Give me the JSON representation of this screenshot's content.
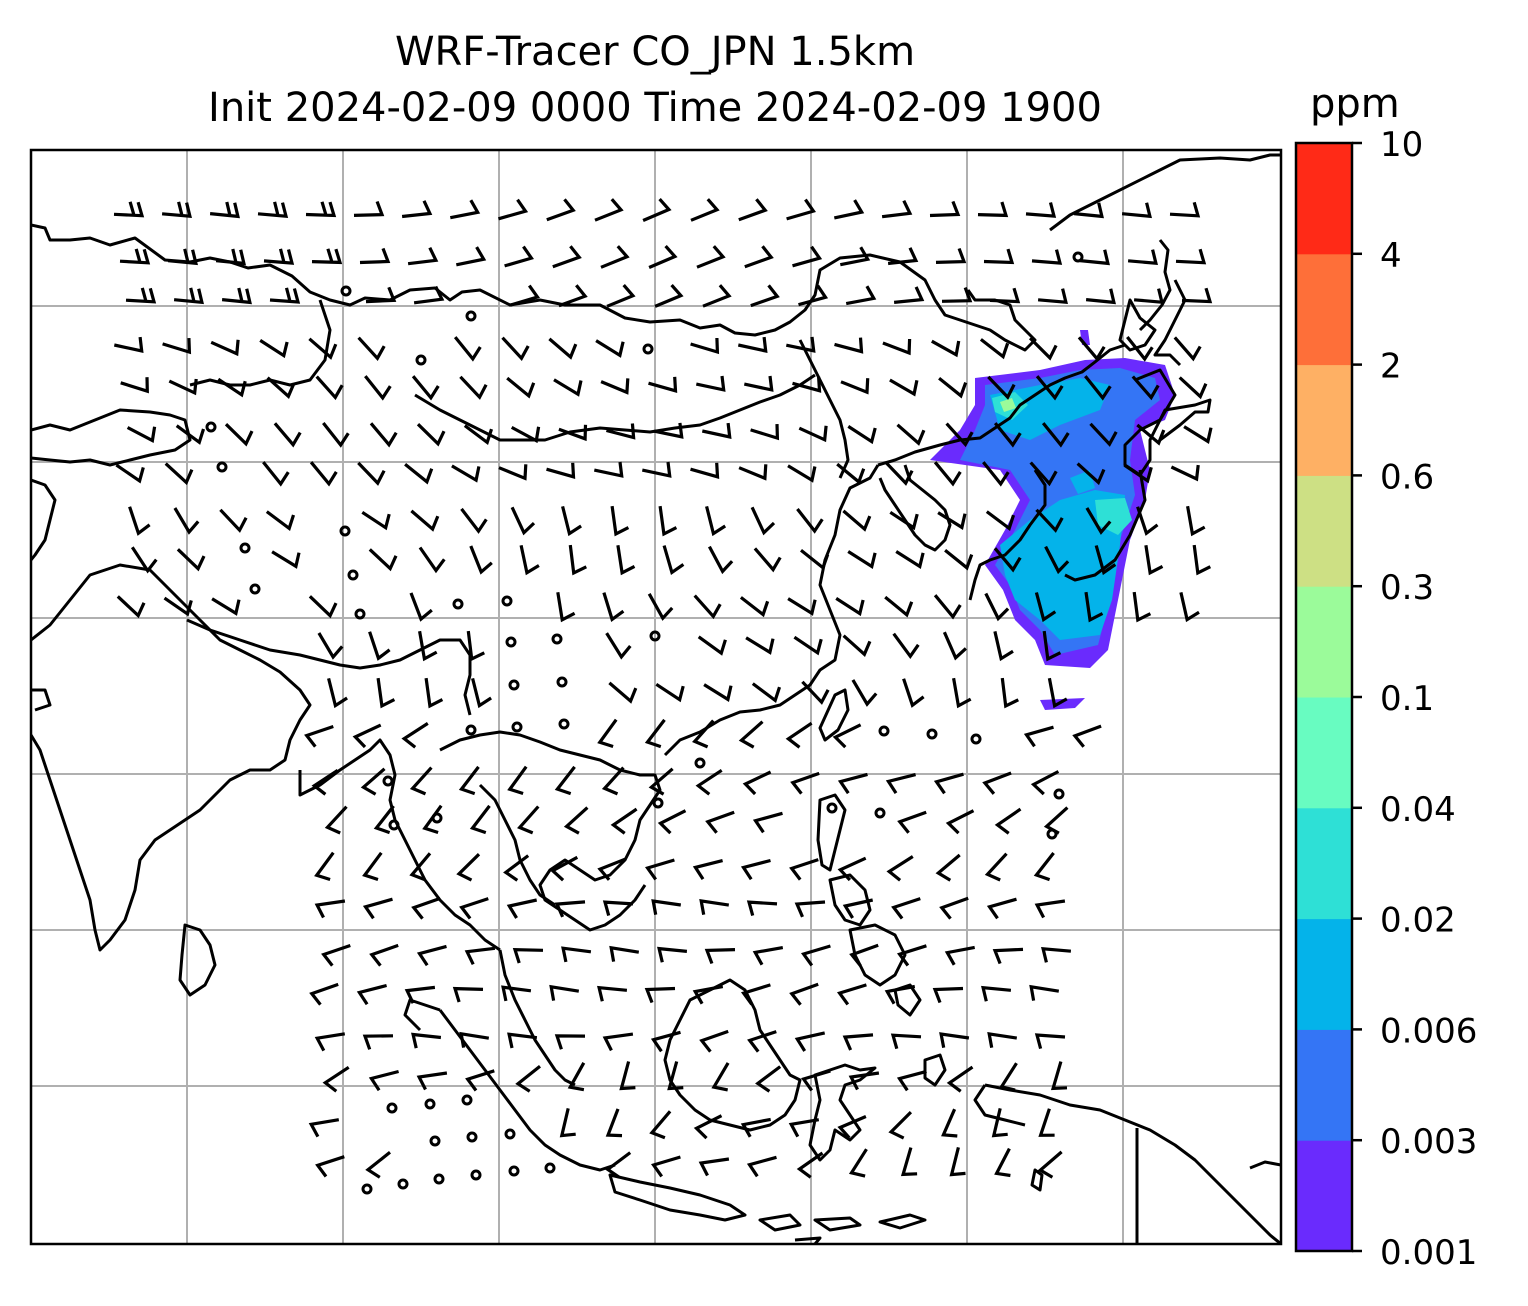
{
  "title": {
    "line1": "WRF-Tracer CO_JPN 1.5km",
    "line2": "Init 2024-02-09 0000 Time 2024-02-09 1900"
  },
  "colorbar": {
    "unit": "ppm",
    "levels": [
      "0.001",
      "0.003",
      "0.006",
      "0.02",
      "0.04",
      "0.1",
      "0.3",
      "0.6",
      "2",
      "4",
      "10"
    ],
    "colors": [
      "#6a2bfd",
      "#3475f5",
      "#04b3ea",
      "#2ee0d6",
      "#68fcc1",
      "#9bfb9a",
      "#cde084",
      "#feb064",
      "#fe6f39",
      "#ff2a17"
    ]
  },
  "map": {
    "gridlines": true,
    "features": [
      "coastlines",
      "wind-barbs",
      "tracer-concentration-field"
    ]
  }
}
